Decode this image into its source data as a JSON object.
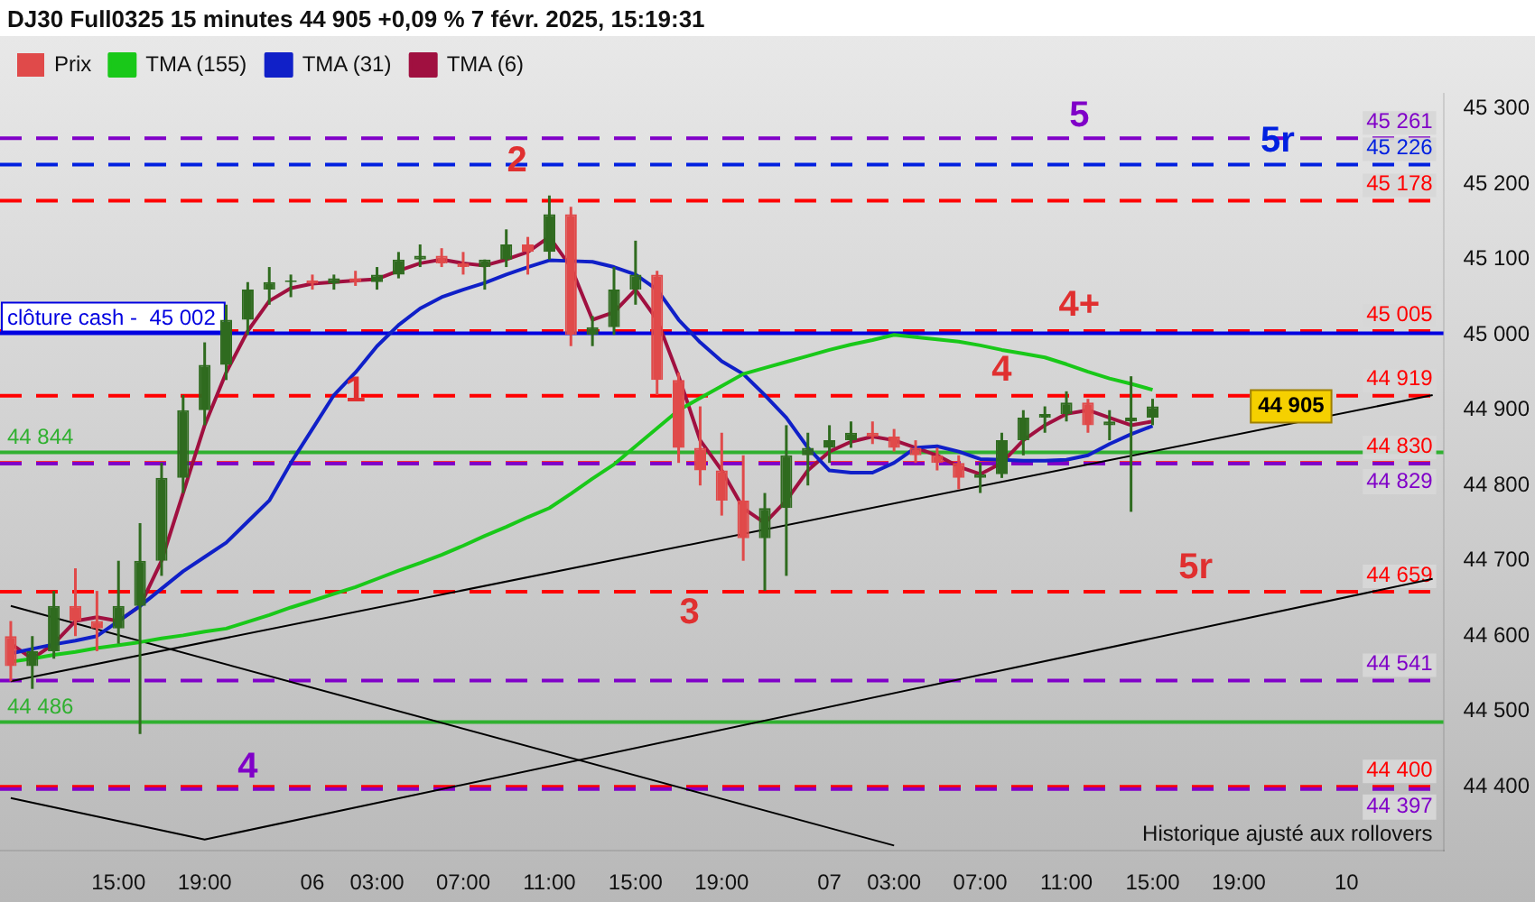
{
  "chart_data": {
    "type": "candlestick",
    "title": "DJ30 Full0325 15 minutes 44 905 +0,09 % 7 févr. 2025, 15:19:31",
    "categories": [
      null,
      null,
      null,
      null,
      null,
      "15:00",
      null,
      null,
      null,
      "19:00",
      null,
      null,
      null,
      null,
      "06",
      null,
      null,
      "03:00",
      null,
      null,
      null,
      "07:00",
      null,
      null,
      null,
      "11:00",
      null,
      null,
      null,
      "15:00",
      null,
      null,
      null,
      "19:00",
      null,
      null,
      null,
      null,
      "07",
      null,
      null,
      "03:00",
      null,
      null,
      null,
      "07:00",
      null,
      null,
      null,
      "11:00",
      null,
      null,
      null,
      "15:00",
      null,
      null,
      null,
      "19:00",
      null,
      null,
      null,
      null,
      "10",
      null,
      null,
      null,
      null
    ],
    "series": [
      {
        "name": "Prix",
        "color": "#2f6b1f",
        "colors": [
          "#e04a4a",
          "#2f6b1f",
          "#2f6b1f",
          "#e04a4a",
          "#e04a4a",
          "#2f6b1f",
          "#2f6b1f",
          "#2f6b1f",
          "#2f6b1f",
          "#2f6b1f",
          "#2f6b1f",
          "#2f6b1f",
          "#2f6b1f",
          "#2f6b1f",
          "#e04a4a",
          "#2f6b1f",
          "#e04a4a",
          "#2f6b1f",
          "#2f6b1f",
          "#2f6b1f",
          "#e04a4a",
          "#e04a4a",
          "#2f6b1f",
          "#2f6b1f",
          "#e04a4a",
          "#2f6b1f",
          "#e04a4a",
          "#2f6b1f",
          "#2f6b1f",
          "#2f6b1f",
          "#e04a4a",
          "#e04a4a",
          "#e04a4a",
          "#e04a4a",
          "#e04a4a",
          "#2f6b1f",
          "#2f6b1f",
          "#2f6b1f",
          "#2f6b1f",
          "#2f6b1f",
          "#e04a4a",
          "#e04a4a",
          "#e04a4a",
          "#e04a4a",
          "#e04a4a",
          "#2f6b1f",
          "#2f6b1f",
          "#2f6b1f",
          "#2f6b1f",
          "#2f6b1f",
          "#e04a4a",
          "#2f6b1f",
          "#2f6b1f",
          "#2f6b1f",
          null,
          null,
          null,
          null,
          null,
          null,
          null,
          null,
          null,
          null,
          null,
          null,
          null
        ],
        "ohlc": [
          [
            44600,
            44620,
            44540,
            44560
          ],
          [
            44560,
            44600,
            44530,
            44580
          ],
          [
            44580,
            44660,
            44570,
            44640
          ],
          [
            44640,
            44690,
            44600,
            44620
          ],
          [
            44620,
            44660,
            44580,
            44610
          ],
          [
            44610,
            44700,
            44590,
            44640
          ],
          [
            44640,
            44750,
            44470,
            44700
          ],
          [
            44700,
            44830,
            44680,
            44810
          ],
          [
            44810,
            44920,
            44790,
            44900
          ],
          [
            44900,
            44990,
            44880,
            44960
          ],
          [
            44960,
            45040,
            44940,
            45020
          ],
          [
            45020,
            45070,
            45000,
            45060
          ],
          [
            45060,
            45090,
            45040,
            45070
          ],
          [
            45070,
            45080,
            45050,
            45072
          ],
          [
            45072,
            45080,
            45060,
            45068
          ],
          [
            45068,
            45080,
            45060,
            45075
          ],
          [
            45075,
            45085,
            45065,
            45070
          ],
          [
            45070,
            45090,
            45060,
            45080
          ],
          [
            45080,
            45110,
            45075,
            45100
          ],
          [
            45100,
            45120,
            45090,
            45105
          ],
          [
            45105,
            45115,
            45090,
            45095
          ],
          [
            45095,
            45110,
            45080,
            45090
          ],
          [
            45090,
            45100,
            45060,
            45100
          ],
          [
            45100,
            45140,
            45090,
            45120
          ],
          [
            45120,
            45130,
            45080,
            45110
          ],
          [
            45110,
            45185,
            45100,
            45160
          ],
          [
            45160,
            45170,
            44985,
            45000
          ],
          [
            45000,
            45025,
            44985,
            45010
          ],
          [
            45010,
            45090,
            45000,
            45060
          ],
          [
            45060,
            45125,
            45040,
            45080
          ],
          [
            45080,
            45085,
            44920,
            44940
          ],
          [
            44940,
            44950,
            44830,
            44850
          ],
          [
            44850,
            44905,
            44800,
            44820
          ],
          [
            44820,
            44870,
            44760,
            44780
          ],
          [
            44780,
            44840,
            44700,
            44730
          ],
          [
            44730,
            44790,
            44660,
            44770
          ],
          [
            44770,
            44880,
            44680,
            44840
          ],
          [
            44840,
            44870,
            44800,
            44850
          ],
          [
            44850,
            44880,
            44830,
            44860
          ],
          [
            44860,
            44885,
            44850,
            44870
          ],
          [
            44870,
            44885,
            44855,
            44865
          ],
          [
            44865,
            44875,
            44845,
            44850
          ],
          [
            44850,
            44860,
            44830,
            44840
          ],
          [
            44840,
            44850,
            44820,
            44830
          ],
          [
            44830,
            44840,
            44795,
            44810
          ],
          [
            44810,
            44830,
            44790,
            44815
          ],
          [
            44815,
            44870,
            44810,
            44860
          ],
          [
            44860,
            44900,
            44840,
            44890
          ],
          [
            44890,
            44905,
            44870,
            44895
          ],
          [
            44895,
            44925,
            44885,
            44910
          ],
          [
            44910,
            44915,
            44870,
            44880
          ],
          [
            44880,
            44900,
            44860,
            44885
          ],
          [
            44885,
            44945,
            44765,
            44890
          ],
          [
            44890,
            44915,
            44880,
            44905
          ],
          null,
          null,
          null,
          null,
          null,
          null,
          null,
          null,
          null,
          null,
          null,
          null,
          null
        ]
      },
      {
        "name": "TMA (155)",
        "type": "line",
        "color": "#19c819",
        "values": [
          44566,
          44570,
          44575,
          44579,
          44584,
          44588,
          44592,
          44597,
          44601,
          44606,
          44610,
          44619,
          44628,
          44638,
          44647,
          44656,
          44665,
          44676,
          44687,
          44697,
          44708,
          44720,
          44733,
          44745,
          44758,
          44770,
          44789,
          44809,
          44828,
          44852,
          44876,
          44900,
          44916,
          44932,
          44948,
          44956,
          44964,
          44972,
          44980,
          44987,
          44993,
          45000,
          44997,
          44994,
          44991,
          44986,
          44980,
          44975,
          44970,
          44961,
          44951,
          44942,
          44935,
          44927,
          null,
          null,
          null,
          null,
          null,
          null,
          null,
          null,
          null,
          null,
          null,
          null,
          null
        ]
      },
      {
        "name": "TMA (31)",
        "type": "line",
        "color": "#1020c8",
        "values": [
          44577,
          44583,
          44589,
          44594,
          44600,
          44620,
          44640,
          44663,
          44686,
          44705,
          44724,
          44752,
          44780,
          44830,
          44875,
          44920,
          44950,
          44985,
          45013,
          45035,
          45050,
          45060,
          45069,
          45080,
          45090,
          45099,
          45098,
          45097,
          45090,
          45080,
          45060,
          45020,
          44990,
          44965,
          44948,
          44920,
          44890,
          44850,
          44820,
          44817,
          44817,
          44830,
          44850,
          44852,
          44845,
          44835,
          44834,
          44833,
          44833,
          44834,
          44840,
          44855,
          44868,
          44879,
          null,
          null,
          null,
          null,
          null,
          null,
          null,
          null,
          null,
          null,
          null,
          null,
          null
        ]
      },
      {
        "name": "TMA (6)",
        "type": "line",
        "color": "#a01040",
        "values": [
          44590,
          44570,
          44590,
          44620,
          44625,
          44620,
          44640,
          44700,
          44790,
          44880,
          44950,
          45005,
          45045,
          45062,
          45068,
          45070,
          45072,
          45074,
          45085,
          45095,
          45100,
          45095,
          45092,
          45100,
          45110,
          45130,
          45090,
          45020,
          45030,
          45060,
          45020,
          44945,
          44860,
          44820,
          44770,
          44750,
          44780,
          44820,
          44845,
          44858,
          44865,
          44860,
          44850,
          44840,
          44825,
          44815,
          44830,
          44860,
          44880,
          44895,
          44900,
          44890,
          44880,
          44885,
          null,
          null,
          null,
          null,
          null,
          null,
          null,
          null,
          null,
          null,
          null,
          null,
          null
        ]
      },
      {
        "type": "line",
        "color": "#000000",
        "values": [
          44540,
          null,
          null,
          null,
          null,
          null,
          null,
          null,
          null,
          null,
          null,
          null,
          null,
          null,
          null,
          null,
          null,
          null,
          null,
          null,
          null,
          null,
          null,
          null,
          null,
          null,
          null,
          null,
          null,
          null,
          null,
          null,
          null,
          null,
          null,
          null,
          null,
          null,
          null,
          null,
          null,
          null,
          null,
          null,
          null,
          null,
          null,
          null,
          null,
          null,
          null,
          null,
          null,
          null,
          null,
          null,
          null,
          null,
          null,
          null,
          null,
          null,
          null,
          null,
          null,
          null,
          44920
        ]
      },
      {
        "type": "line",
        "color": "#000000",
        "values": [
          44385,
          null,
          null,
          null,
          null,
          null,
          null,
          null,
          null,
          44330,
          null,
          null,
          null,
          null,
          null,
          null,
          null,
          null,
          null,
          null,
          null,
          null,
          null,
          null,
          null,
          null,
          null,
          null,
          null,
          null,
          null,
          null,
          null,
          null,
          null,
          null,
          null,
          null,
          null,
          null,
          null,
          null,
          null,
          null,
          null,
          null,
          null,
          null,
          null,
          null,
          null,
          null,
          null,
          null,
          null,
          null,
          null,
          null,
          null,
          null,
          null,
          null,
          null,
          null,
          null,
          null,
          44676
        ]
      },
      {
        "type": "line",
        "color": "#000000",
        "values": [
          44640,
          null,
          null,
          null,
          null,
          null,
          null,
          null,
          null,
          null,
          null,
          null,
          null,
          null,
          null,
          null,
          null,
          null,
          null,
          null,
          null,
          null,
          null,
          null,
          null,
          null,
          null,
          null,
          null,
          null,
          null,
          null,
          null,
          null,
          null,
          null,
          null,
          null,
          null,
          null,
          null,
          44322,
          null,
          null,
          null,
          null,
          null,
          null,
          null,
          null,
          null,
          null,
          null,
          null,
          null,
          null,
          null,
          null,
          null,
          null,
          null,
          null,
          null,
          null,
          null,
          null,
          null
        ]
      }
    ],
    "ylim": [
      44315,
      45320
    ],
    "yticks": [
      {
        "value": 44400,
        "label": "44 400"
      },
      {
        "value": 44500,
        "label": "44 500"
      },
      {
        "value": 44600,
        "label": "44 600"
      },
      {
        "value": 44700,
        "label": "44 700"
      },
      {
        "value": 44800,
        "label": "44 800"
      },
      {
        "value": 44900,
        "label": "44 900"
      },
      {
        "value": 45000,
        "label": "45 000"
      },
      {
        "value": 45100,
        "label": "45 100"
      },
      {
        "value": 45200,
        "label": "45 200"
      },
      {
        "value": 45300,
        "label": "45 300"
      }
    ],
    "ref_lines": [
      {
        "axis": "y",
        "value": 45261,
        "label": "45 261",
        "color": "#8000c8",
        "line_style": "dashed"
      },
      {
        "axis": "y",
        "value": 45226,
        "label": "45 226",
        "color": "#0020e0",
        "line_style": "dashed"
      },
      {
        "axis": "y",
        "value": 45178,
        "label": "45 178",
        "color": "#ff0000",
        "line_style": "dashed"
      },
      {
        "axis": "y",
        "value": 45005,
        "label": "45 005",
        "color": "#ff0000",
        "line_style": "dashed"
      },
      {
        "axis": "y",
        "value": 45002,
        "label": "clôture cash -  45 002",
        "color": "#0000e0",
        "line_style": "solid"
      },
      {
        "axis": "y",
        "value": 44919,
        "label": "44 919",
        "color": "#ff0000",
        "line_style": "dashed"
      },
      {
        "axis": "y",
        "value": 44844,
        "label": "44 844",
        "color": "#30b030",
        "line_style": "solid"
      },
      {
        "axis": "y",
        "value": 44830,
        "label": "44 830",
        "color": "#ff0000",
        "line_style": "dashed"
      },
      {
        "axis": "y",
        "value": 44829,
        "label": "44 829",
        "color": "#8000c8",
        "line_style": "dashed"
      },
      {
        "axis": "y",
        "value": 44659,
        "label": "44 659",
        "color": "#ff0000",
        "line_style": "dashed"
      },
      {
        "axis": "y",
        "value": 44541,
        "label": "44 541",
        "color": "#8000c8",
        "line_style": "dashed"
      },
      {
        "axis": "y",
        "value": 44486,
        "label": "44 486",
        "color": "#30b030",
        "line_style": "solid"
      },
      {
        "axis": "y",
        "value": 44400,
        "label": "44 400",
        "color": "#ff0000",
        "line_style": "dashed"
      },
      {
        "axis": "y",
        "value": 44397,
        "label": "44 397",
        "color": "#8000c8",
        "line_style": "dashed"
      }
    ],
    "annotations": [
      {
        "text": "2",
        "y": 45178
      },
      {
        "text": "1",
        "y": 44925
      },
      {
        "text": "3",
        "y": 44659
      },
      {
        "text": "4",
        "y": 44919
      },
      {
        "text": "4+",
        "y": 45005
      },
      {
        "text": "5",
        "y": 45261
      },
      {
        "text": "5r",
        "y": 45226
      },
      {
        "text": "5r",
        "y": 44659
      },
      {
        "text": "4",
        "y": 44397
      },
      "44 905",
      "Historique ajusté aux rollovers"
    ],
    "legend": "top left",
    "grid": false
  }
}
